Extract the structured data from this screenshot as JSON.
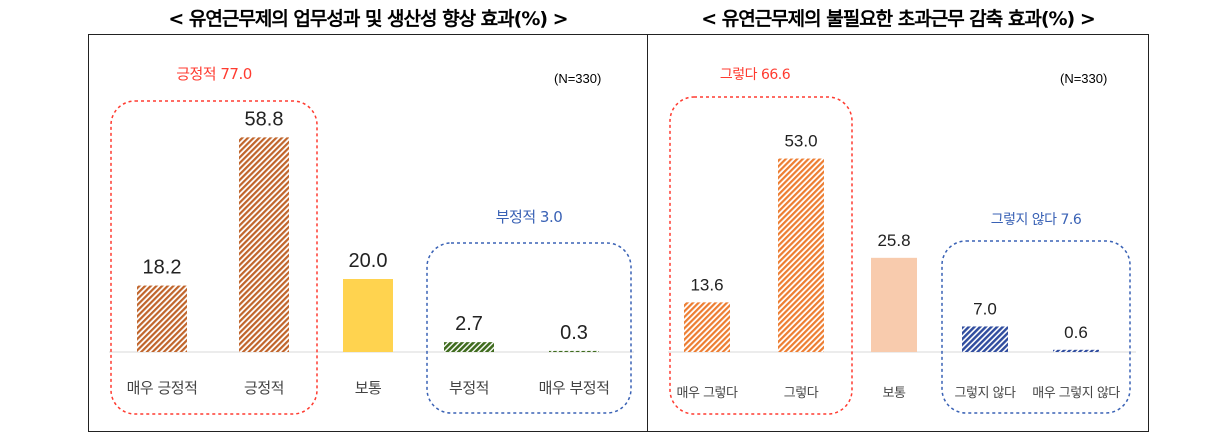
{
  "titles": {
    "left": "< 유연근무제의 업무성과 및 생산성 향상 효과(%) >",
    "right": "< 유연근무제의 불필요한 초과근무 감축 효과(%) >"
  },
  "colors": {
    "orange_stripe": "#C0642A",
    "yellow": "#FFD34F",
    "green_stripe": "#3F6B1E",
    "orange_light_stripe": "#ED7D31",
    "peach": "#F8CBAD",
    "blue_stripe": "#2F4C9E",
    "red_group": "#FF3B30",
    "blue_group": "#3A62B5"
  },
  "chart_data": [
    {
      "type": "bar",
      "title": "유연근무제의 업무성과 및 생산성 향상 효과(%)",
      "n_label": "(N=330)",
      "categories": [
        "매우 긍정적",
        "긍정적",
        "보통",
        "부정적",
        "매우 부정적"
      ],
      "values": [
        18.2,
        58.8,
        20.0,
        2.7,
        0.3
      ],
      "value_labels": [
        "18.2",
        "58.8",
        "20.0",
        "2.7",
        "0.3"
      ],
      "ylim": [
        0,
        70
      ],
      "groups": [
        {
          "label": "긍정적 77.0",
          "members": [
            0,
            1
          ],
          "color": "red"
        },
        {
          "label": "부정적 3.0",
          "members": [
            3,
            4
          ],
          "color": "blue"
        }
      ]
    },
    {
      "type": "bar",
      "title": "유연근무제의 불필요한 초과근무 감축 효과(%)",
      "n_label": "(N=330)",
      "categories": [
        "매우 그렇다",
        "그렇다",
        "보통",
        "그렇지 않다",
        "매우 그렇지 않다"
      ],
      "values": [
        13.6,
        53.0,
        25.8,
        7.0,
        0.6
      ],
      "value_labels": [
        "13.6",
        "53.0",
        "25.8",
        "7.0",
        "0.6"
      ],
      "ylim": [
        0,
        70
      ],
      "groups": [
        {
          "label": "그렇다 66.6",
          "members": [
            0,
            1
          ],
          "color": "red"
        },
        {
          "label": "그렇지 않다 7.6",
          "members": [
            3,
            4
          ],
          "color": "blue"
        }
      ]
    }
  ]
}
